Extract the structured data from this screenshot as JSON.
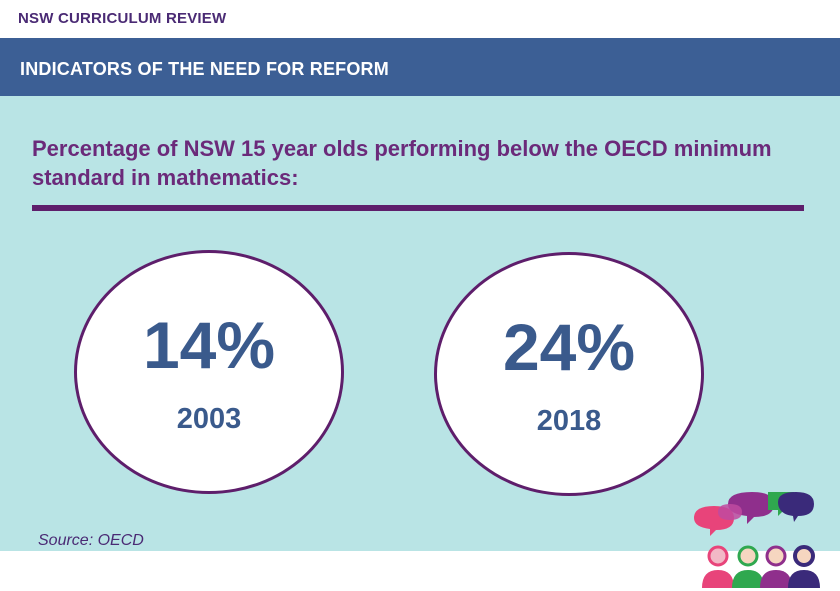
{
  "header": {
    "label": "NSW CURRICULUM REVIEW"
  },
  "banner": {
    "title": "INDICATORS OF THE NEED FOR REFORM"
  },
  "content": {
    "headline": "Percentage of NSW 15 year olds performing below the OECD minimum standard in mathematics:",
    "stats": [
      {
        "value": "14%",
        "year": "2003"
      },
      {
        "value": "24%",
        "year": "2018"
      }
    ],
    "source": "Source: OECD"
  },
  "colors": {
    "banner": "#3c5f95",
    "panel": "#b9e4e5",
    "accent_purple": "#5e1e6b",
    "stat_blue": "#3a5a8c"
  },
  "icons": {
    "logo": "speech-bubbles-people-icon"
  }
}
